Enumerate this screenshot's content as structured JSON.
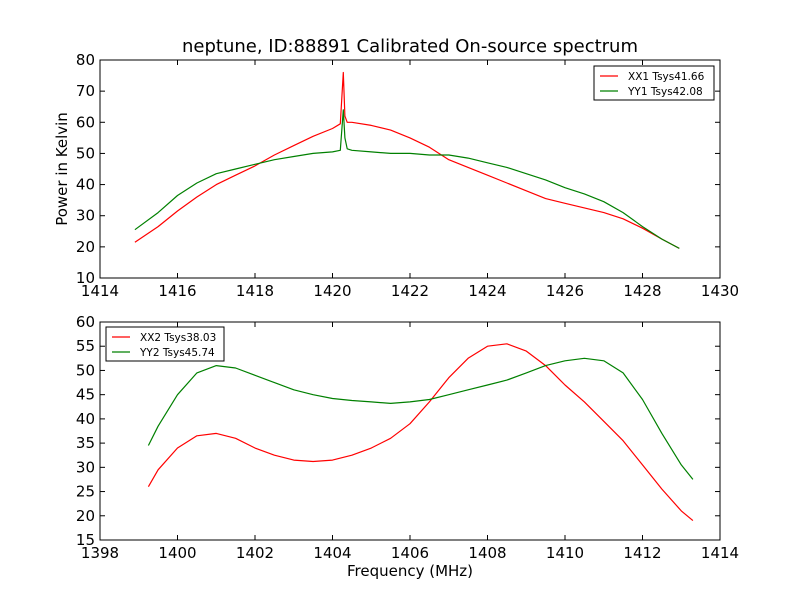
{
  "chart_data": [
    {
      "type": "line",
      "title": "neptune, ID:88891 Calibrated On-source spectrum",
      "xlabel": "",
      "ylabel": "Power in Kelvin",
      "xlim": [
        1414,
        1430
      ],
      "ylim": [
        10,
        80
      ],
      "xticks": [
        1414,
        1416,
        1418,
        1420,
        1422,
        1424,
        1426,
        1428,
        1430
      ],
      "yticks": [
        10,
        20,
        30,
        40,
        50,
        60,
        70,
        80
      ],
      "legend_position": "top-right",
      "series": [
        {
          "name": "XX1 Tsys41.66",
          "color": "#ff0000",
          "x": [
            1414.9,
            1415.5,
            1416.0,
            1416.5,
            1417.0,
            1417.5,
            1418.0,
            1418.5,
            1419.0,
            1419.5,
            1420.0,
            1420.2,
            1420.28,
            1420.32,
            1420.38,
            1420.5,
            1421.0,
            1421.5,
            1422.0,
            1422.5,
            1423.0,
            1423.5,
            1424.0,
            1424.5,
            1425.0,
            1425.5,
            1426.0,
            1426.5,
            1427.0,
            1427.5,
            1428.0,
            1428.5,
            1428.95
          ],
          "y": [
            21.5,
            26.5,
            31.5,
            36.0,
            40.0,
            43.0,
            46.0,
            49.5,
            52.5,
            55.5,
            58.0,
            59.5,
            76.0,
            62.0,
            60.0,
            60.0,
            59.0,
            57.5,
            55.0,
            52.0,
            48.0,
            45.5,
            43.0,
            40.5,
            38.0,
            35.5,
            34.0,
            32.5,
            31.0,
            29.0,
            26.0,
            22.5,
            19.5
          ]
        },
        {
          "name": "YY1 Tsys42.08",
          "color": "#008000",
          "x": [
            1414.9,
            1415.5,
            1416.0,
            1416.5,
            1417.0,
            1417.5,
            1418.0,
            1418.5,
            1419.0,
            1419.5,
            1420.0,
            1420.2,
            1420.28,
            1420.32,
            1420.38,
            1420.5,
            1421.0,
            1421.5,
            1422.0,
            1422.5,
            1423.0,
            1423.5,
            1424.0,
            1424.5,
            1425.0,
            1425.5,
            1426.0,
            1426.5,
            1427.0,
            1427.5,
            1428.0,
            1428.5,
            1428.95
          ],
          "y": [
            25.5,
            31.0,
            36.5,
            40.5,
            43.5,
            45.0,
            46.5,
            48.0,
            49.0,
            50.0,
            50.5,
            51.0,
            64.0,
            55.0,
            51.5,
            51.0,
            50.5,
            50.0,
            50.0,
            49.5,
            49.5,
            48.5,
            47.0,
            45.5,
            43.5,
            41.5,
            39.0,
            37.0,
            34.5,
            31.0,
            26.5,
            22.5,
            19.5
          ]
        }
      ]
    },
    {
      "type": "line",
      "title": "",
      "xlabel": "Frequency (MHz)",
      "ylabel": "",
      "xlim": [
        1398,
        1414
      ],
      "ylim": [
        15,
        60
      ],
      "xticks": [
        1398,
        1400,
        1402,
        1404,
        1406,
        1408,
        1410,
        1412,
        1414
      ],
      "yticks": [
        15,
        20,
        25,
        30,
        35,
        40,
        45,
        50,
        55,
        60
      ],
      "legend_position": "top-left",
      "series": [
        {
          "name": "XX2 Tsys38.03",
          "color": "#ff0000",
          "x": [
            1399.25,
            1399.5,
            1400.0,
            1400.5,
            1401.0,
            1401.5,
            1402.0,
            1402.5,
            1403.0,
            1403.5,
            1404.0,
            1404.5,
            1405.0,
            1405.5,
            1406.0,
            1406.5,
            1407.0,
            1407.5,
            1408.0,
            1408.5,
            1409.0,
            1409.5,
            1410.0,
            1410.5,
            1411.0,
            1411.5,
            1412.0,
            1412.5,
            1413.0,
            1413.3
          ],
          "y": [
            26.0,
            29.5,
            34.0,
            36.5,
            37.0,
            36.0,
            34.0,
            32.5,
            31.5,
            31.2,
            31.5,
            32.5,
            34.0,
            36.0,
            39.0,
            43.5,
            48.5,
            52.5,
            55.0,
            55.5,
            54.0,
            51.0,
            47.0,
            43.5,
            39.5,
            35.5,
            30.5,
            25.5,
            21.0,
            19.0
          ]
        },
        {
          "name": "YY2 Tsys45.74",
          "color": "#008000",
          "x": [
            1399.25,
            1399.5,
            1400.0,
            1400.5,
            1401.0,
            1401.5,
            1402.0,
            1402.5,
            1403.0,
            1403.5,
            1404.0,
            1404.5,
            1405.0,
            1405.5,
            1406.0,
            1406.5,
            1407.0,
            1407.5,
            1408.0,
            1408.5,
            1409.0,
            1409.5,
            1410.0,
            1410.5,
            1411.0,
            1411.5,
            1412.0,
            1412.5,
            1413.0,
            1413.3
          ],
          "y": [
            34.5,
            38.5,
            45.0,
            49.5,
            51.0,
            50.5,
            49.0,
            47.5,
            46.0,
            45.0,
            44.2,
            43.8,
            43.5,
            43.2,
            43.5,
            44.0,
            45.0,
            46.0,
            47.0,
            48.0,
            49.5,
            51.0,
            52.0,
            52.5,
            52.0,
            49.5,
            44.0,
            37.0,
            30.5,
            27.5
          ]
        }
      ]
    }
  ]
}
